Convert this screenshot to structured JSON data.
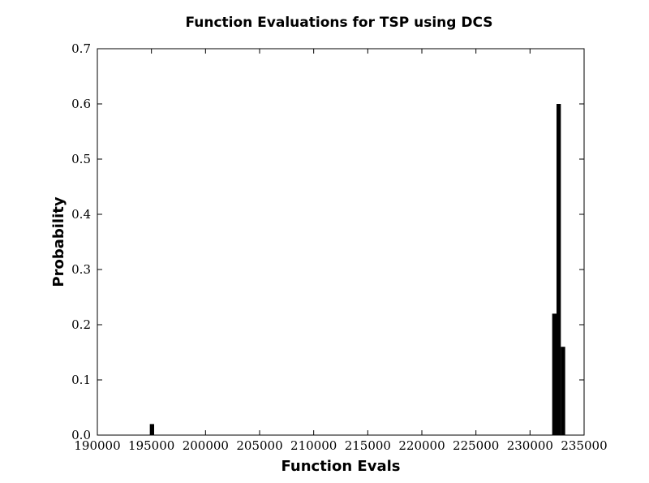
{
  "chart_data": {
    "type": "bar",
    "title": "Function Evaluations for TSP using DCS",
    "xlabel": "Function Evals",
    "ylabel": "Probability",
    "xlim": [
      190000,
      235000
    ],
    "ylim": [
      0,
      0.7
    ],
    "x_ticks": [
      "190000",
      "195000",
      "200000",
      "205000",
      "210000",
      "215000",
      "220000",
      "225000",
      "230000",
      "235000"
    ],
    "x_tick_values": [
      190000,
      195000,
      200000,
      205000,
      210000,
      215000,
      220000,
      225000,
      230000,
      235000
    ],
    "y_ticks": [
      "0.0",
      "0.1",
      "0.2",
      "0.3",
      "0.4",
      "0.5",
      "0.6",
      "0.7"
    ],
    "y_tick_values": [
      0,
      0.1,
      0.2,
      0.3,
      0.4,
      0.5,
      0.6,
      0.7
    ],
    "bar_color": "#000000",
    "grid": false,
    "bins": [
      {
        "x_start": 194850,
        "x_end": 195250,
        "value": 0.02
      },
      {
        "x_start": 232050,
        "x_end": 232450,
        "value": 0.22
      },
      {
        "x_start": 232450,
        "x_end": 232850,
        "value": 0.6
      },
      {
        "x_start": 232850,
        "x_end": 233250,
        "value": 0.16
      }
    ]
  }
}
